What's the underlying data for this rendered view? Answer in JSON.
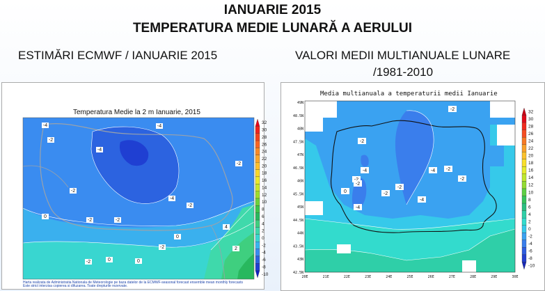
{
  "header": {
    "title_line1": "IANUARIE 2015",
    "title_line2": "TEMPERATURA MEDIE LUNARĂ A AERULUI",
    "left_heading": "ESTIMĂRI ECMWF / IANUARIE 2015",
    "right_heading_line1": "VALORI MEDII MULTIANUALE LUNARE",
    "right_heading_line2": "/1981-2010"
  },
  "left_map": {
    "title": "Temperatura Medie la 2 m Ianuarie, 2015",
    "footnote_line1": "Harta realizata de Administratia Nationala de Meteorologie pe baza datelor de la ECMWF-seasonal forecast ensemble mean monthly forecasts",
    "footnote_line2": "Este strict interzisa copierea si difuzarea. Toate drepturile rezervate.",
    "contour_labels": [
      "-4",
      "-2",
      "-4",
      "-4",
      "-2",
      "-2",
      "-2",
      "-4",
      "-2",
      "0",
      "-2",
      "0",
      "-2",
      "0",
      "4",
      "0",
      "2",
      "-2"
    ],
    "colorbar": {
      "labels": [
        "32",
        "30",
        "28",
        "26",
        "24",
        "22",
        "20",
        "18",
        "16",
        "14",
        "12",
        "10",
        "8",
        "6",
        "4",
        "2",
        "0",
        "-2",
        "-4",
        "-6",
        "-8",
        "-10"
      ],
      "colors": [
        "#e8001a",
        "#f0231d",
        "#f4421d",
        "#f86523",
        "#f98a26",
        "#faa62c",
        "#fdc02e",
        "#f9d92b",
        "#ecea2c",
        "#c9e62c",
        "#9fdc2d",
        "#6ed23b",
        "#3dc54a",
        "#28b85e",
        "#3fcf7f",
        "#3fd9ab",
        "#39d6d0",
        "#38b5ef",
        "#3a8cf0",
        "#2c63e0",
        "#1f3fd2",
        "#1020c0"
      ]
    }
  },
  "right_map": {
    "title": "Media multianuala a temperaturii medii Ianuarie",
    "contour_labels": [
      "-2",
      "-2",
      "-2",
      "-2",
      "-4",
      "-2",
      "-2",
      "0",
      "-4",
      "-2",
      "-2",
      "-4",
      "-4"
    ],
    "lat_labels": [
      "49N",
      "48.5N",
      "48N",
      "47.5N",
      "47N",
      "46.5N",
      "46N",
      "45.5N",
      "45N",
      "44.5N",
      "44N",
      "43.5N",
      "43N",
      "42.5N"
    ],
    "lon_labels": [
      "20E",
      "21E",
      "22E",
      "23E",
      "24E",
      "25E",
      "26E",
      "27E",
      "28E",
      "29E",
      "30E"
    ],
    "colorbar": {
      "labels": [
        "32",
        "30",
        "28",
        "26",
        "24",
        "22",
        "20",
        "18",
        "16",
        "14",
        "12",
        "10",
        "8",
        "6",
        "4",
        "2",
        "0",
        "-2",
        "-4",
        "-6",
        "-8",
        "-10"
      ],
      "colors": [
        "#c80014",
        "#e00a1a",
        "#f02a1e",
        "#f54e22",
        "#f77a25",
        "#f9a02a",
        "#fbc22d",
        "#f8df2c",
        "#e5ec2c",
        "#bfe82e",
        "#92dc33",
        "#5ecf44",
        "#36c45c",
        "#2bbf80",
        "#2fcfa8",
        "#33dbcd",
        "#36c9ea",
        "#3aa2f1",
        "#3a7eec",
        "#2f5de0",
        "#2440cf",
        "#1828b8"
      ]
    }
  }
}
